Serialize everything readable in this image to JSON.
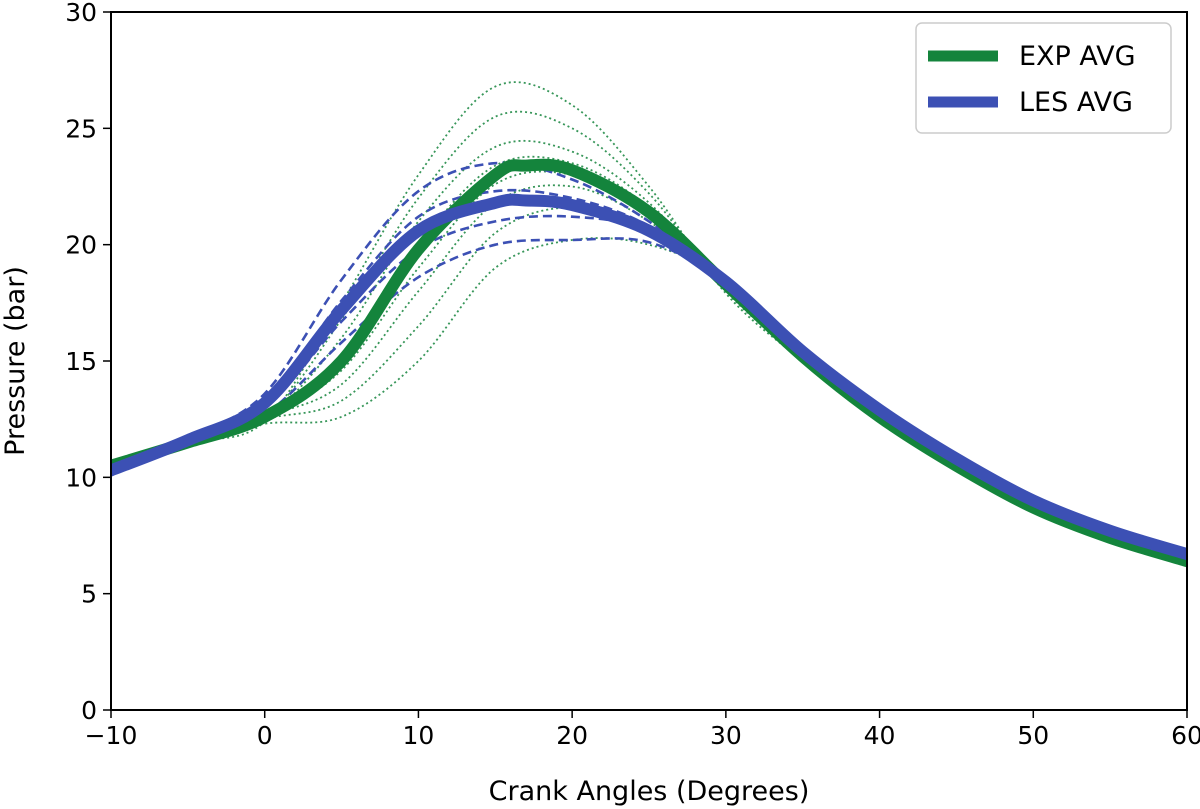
{
  "chart_data": {
    "type": "line",
    "title": "",
    "xlabel": "Crank Angles (Degrees)",
    "ylabel": "Pressure (bar)",
    "xlim": [
      -10,
      60
    ],
    "ylim": [
      0,
      30
    ],
    "xticks": [
      -10,
      0,
      10,
      20,
      30,
      40,
      50,
      60
    ],
    "yticks": [
      0,
      5,
      10,
      15,
      20,
      25,
      30
    ],
    "xtick_labels": [
      "−10",
      "0",
      "10",
      "20",
      "30",
      "40",
      "50",
      "60"
    ],
    "ytick_labels": [
      "0",
      "5",
      "10",
      "15",
      "20",
      "25",
      "30"
    ],
    "grid": false,
    "legend_position": "top-right",
    "colors": {
      "exp": "#14843c",
      "les": "#3c50b4",
      "text": "#000000"
    },
    "legend": [
      {
        "label": "EXP AVG",
        "color": "#14843c"
      },
      {
        "label": "LES AVG",
        "color": "#3c50b4"
      }
    ],
    "series": [
      {
        "name": "EXP AVG",
        "style": "solid-thick",
        "color": "#14843c",
        "x": [
          -10,
          -5,
          0,
          5,
          10,
          15,
          17,
          20,
          25,
          30,
          35,
          40,
          45,
          50,
          55,
          60
        ],
        "y": [
          10.5,
          11.5,
          12.6,
          15.0,
          19.8,
          23.0,
          23.4,
          23.2,
          21.4,
          18.3,
          15.2,
          12.6,
          10.5,
          8.7,
          7.4,
          6.4
        ]
      },
      {
        "name": "LES AVG",
        "style": "solid-thick",
        "color": "#3c50b4",
        "x": [
          -10,
          -5,
          0,
          5,
          10,
          15,
          17,
          20,
          25,
          30,
          35,
          40,
          45,
          50,
          55,
          60
        ],
        "y": [
          10.3,
          11.6,
          13.2,
          17.2,
          20.6,
          21.8,
          21.9,
          21.7,
          20.6,
          18.4,
          15.4,
          12.9,
          10.8,
          9.0,
          7.7,
          6.7
        ]
      }
    ],
    "exp_cycles": {
      "color": "#14843c",
      "style": "dotted-thin",
      "x": [
        -10,
        -5,
        0,
        5,
        10,
        15,
        20,
        25,
        30,
        35,
        40,
        45,
        50,
        55,
        60
      ],
      "y": [
        [
          10.5,
          11.5,
          12.4,
          17.5,
          23.0,
          26.8,
          26.0,
          22.5,
          17.9,
          15.0,
          12.5,
          10.4,
          8.7,
          7.4,
          6.4
        ],
        [
          10.5,
          11.5,
          12.5,
          16.8,
          22.0,
          25.5,
          25.0,
          22.2,
          18.0,
          15.1,
          12.6,
          10.5,
          8.7,
          7.4,
          6.4
        ],
        [
          10.5,
          11.5,
          12.5,
          16.0,
          21.0,
          24.2,
          24.0,
          21.8,
          18.1,
          15.1,
          12.6,
          10.5,
          8.7,
          7.4,
          6.4
        ],
        [
          10.5,
          11.5,
          12.6,
          15.2,
          20.0,
          23.4,
          23.5,
          21.6,
          18.2,
          15.2,
          12.6,
          10.5,
          8.7,
          7.4,
          6.4
        ],
        [
          10.5,
          11.5,
          12.6,
          14.6,
          19.0,
          22.6,
          23.0,
          21.3,
          18.3,
          15.2,
          12.6,
          10.5,
          8.7,
          7.4,
          6.4
        ],
        [
          10.5,
          11.5,
          12.6,
          14.0,
          18.0,
          21.8,
          22.5,
          21.0,
          18.3,
          15.2,
          12.6,
          10.5,
          8.7,
          7.4,
          6.4
        ],
        [
          10.5,
          11.5,
          12.5,
          13.3,
          16.5,
          20.5,
          21.6,
          20.6,
          18.4,
          15.3,
          12.7,
          10.5,
          8.7,
          7.4,
          6.4
        ],
        [
          10.5,
          11.5,
          12.3,
          12.6,
          15.0,
          19.0,
          20.2,
          20.0,
          18.5,
          15.3,
          12.7,
          10.5,
          8.7,
          7.4,
          6.4
        ]
      ]
    },
    "les_cycles": {
      "color": "#3c50b4",
      "style": "dashed",
      "x": [
        -10,
        -5,
        0,
        5,
        10,
        15,
        20,
        25,
        30,
        35,
        40,
        45,
        50,
        55,
        60
      ],
      "y": [
        [
          10.3,
          11.7,
          13.6,
          18.5,
          22.3,
          23.5,
          22.8,
          21.0,
          18.4,
          15.4,
          12.9,
          10.8,
          9.0,
          7.7,
          6.7
        ],
        [
          10.3,
          11.6,
          13.3,
          17.6,
          21.2,
          22.3,
          22.0,
          20.8,
          18.4,
          15.4,
          12.9,
          10.8,
          9.0,
          7.7,
          6.7
        ],
        [
          10.3,
          11.6,
          13.0,
          16.7,
          19.8,
          21.0,
          21.2,
          20.6,
          18.4,
          15.4,
          12.9,
          10.8,
          9.0,
          7.7,
          6.7
        ],
        [
          10.3,
          11.5,
          12.7,
          15.8,
          18.6,
          20.0,
          20.2,
          20.1,
          18.4,
          15.4,
          12.9,
          10.8,
          9.0,
          7.7,
          6.7
        ]
      ]
    }
  }
}
